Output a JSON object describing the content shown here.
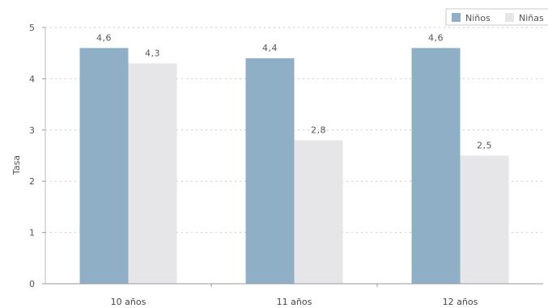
{
  "chart_data": {
    "type": "bar",
    "categories": [
      "10 años",
      "11 años",
      "12 años"
    ],
    "series": [
      {
        "name": "Niños",
        "values": [
          4.6,
          4.4,
          4.6
        ],
        "labels": [
          "4,6",
          "4,4",
          "4,6"
        ],
        "color": "#8eafc6"
      },
      {
        "name": "Niñas",
        "values": [
          4.3,
          2.8,
          2.5
        ],
        "labels": [
          "4,3",
          "2,8",
          "2,5"
        ],
        "color": "#e6e6e8"
      }
    ],
    "ylabel": "Tasa",
    "ylim": [
      0,
      5
    ],
    "yticks": [
      "0",
      "1",
      "2",
      "3",
      "4",
      "5"
    ],
    "grid": true,
    "legend": "top-right"
  }
}
